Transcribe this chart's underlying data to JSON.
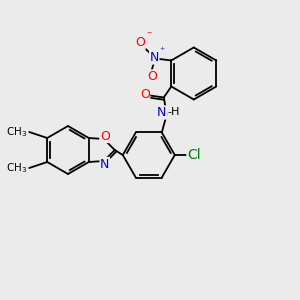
{
  "background_color": "#ebebeb",
  "atom_colors": {
    "C": "#000000",
    "N": "#0000cc",
    "O": "#ff0000",
    "Cl": "#008000",
    "H": "#000000"
  },
  "bond_color": "#000000",
  "font_size_atoms": 9,
  "figure_size": [
    3.0,
    3.0
  ],
  "dpi": 100
}
